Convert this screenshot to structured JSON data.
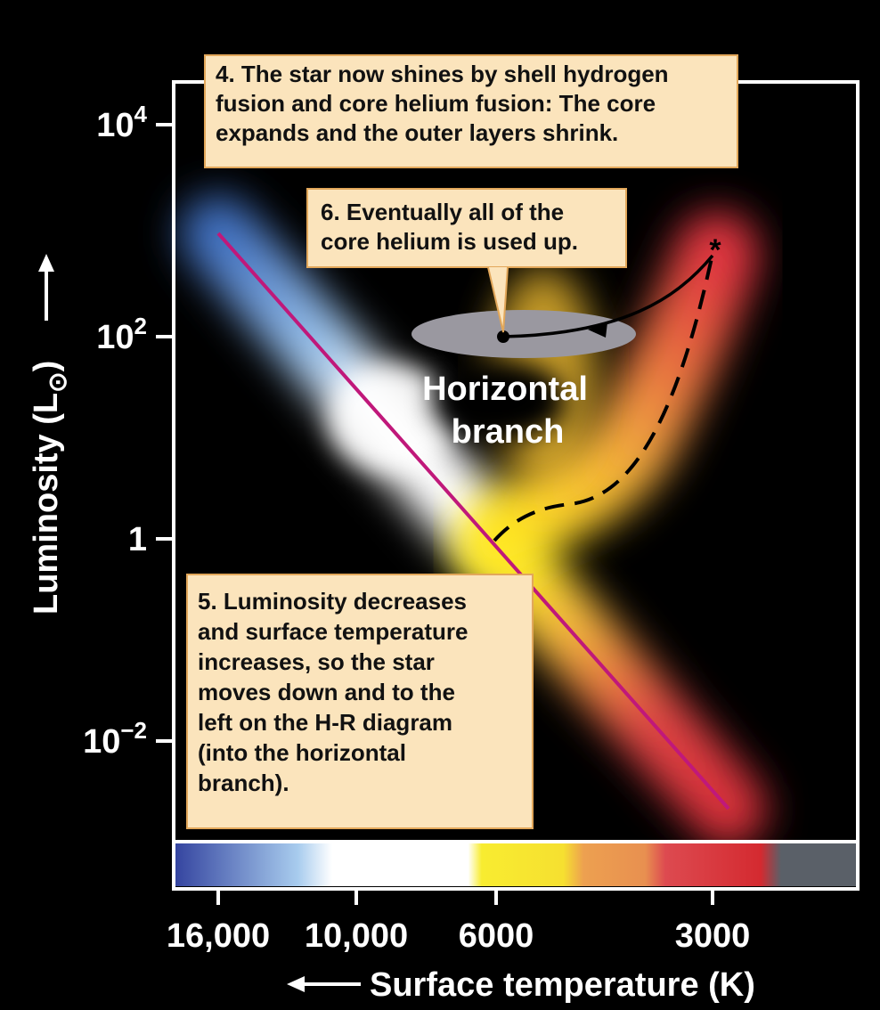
{
  "y_axis": {
    "label": "Luminosity (L",
    "label_subscript": "⊙",
    "label_end": ")",
    "ticks": [
      {
        "base": "10",
        "exponent": "4"
      },
      {
        "base": "10",
        "exponent": "2"
      },
      {
        "base": "1"
      },
      {
        "base": "10",
        "exponent": "−2"
      }
    ]
  },
  "x_axis": {
    "label": "Surface temperature (K)",
    "ticks": [
      "16,000",
      "10,000",
      "6000",
      "3000"
    ]
  },
  "region_label": {
    "lines": [
      "Horizontal",
      "branch"
    ]
  },
  "annotations": [
    {
      "lines": [
        "4. The star now shines by shell hydrogen",
        "fusion and core helium fusion: The core",
        "expands and the outer layers shrink."
      ]
    },
    {
      "lines": [
        "6. Eventually all of the",
        "core helium is used up."
      ]
    },
    {
      "lines": [
        "5. Luminosity decreases",
        "and surface temperature",
        "increases, so the star",
        "moves down and to the",
        "left on the H-R diagram",
        "(into the horizontal",
        "branch)."
      ]
    }
  ]
}
